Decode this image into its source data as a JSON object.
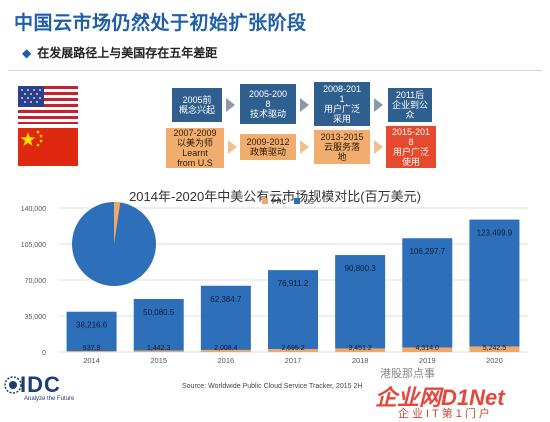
{
  "title": "中国云市场仍然处于初始扩张阶段",
  "subtitle": "在发展路径上与美国存在五年差距",
  "us_boxes": [
    "2005前\n概念兴起",
    "2005-200\n8\n技术驱动",
    "2008-201\n1\n用户广泛\n采用",
    "2011后\n企业到公\n众"
  ],
  "cn_boxes": [
    "2007-2009\n以美为师\nLearnt\nfrom U.S",
    "2009-2012\n政策驱动",
    "2013-2015\n云服务落\n地",
    "2015-201\n8\n用户广泛\n使用"
  ],
  "chart_data": {
    "type": "bar",
    "title": "2014年-2020年中美公有云市场规模对比(百万美元)",
    "categories": [
      "2014",
      "2015",
      "2016",
      "2017",
      "2018",
      "2019",
      "2020"
    ],
    "ylim": [
      0,
      140000
    ],
    "yticks": [
      "0",
      "35,000",
      "70,000",
      "105,000",
      "140,000"
    ],
    "ytick_values": [
      0,
      35000,
      70000,
      105000,
      140000
    ],
    "series": [
      {
        "name": "PRC",
        "values": [
          937.9,
          1442.3,
          2008.4,
          2695.2,
          3451.2,
          4314.0,
          5242.5
        ],
        "labels": [
          "937.9",
          "1,442.3",
          "2,008.4",
          "2,695.2",
          "3,451.2",
          "4,314.0",
          "5,242.5"
        ],
        "color": "#f0a868"
      },
      {
        "name": "US",
        "values": [
          38216.6,
          50080.5,
          62384.7,
          76911.2,
          90800.3,
          106297.7,
          123499.9
        ],
        "labels": [
          "38,216.6",
          "50,080.5",
          "62,384.7",
          "76,911.2",
          "90,800.3",
          "106,297.7",
          "123,499.9"
        ],
        "color": "#2e6fba"
      }
    ],
    "grid": true,
    "legend": "top"
  },
  "source": "Source: Worldwide Public Cloud Service Tracker, 2015 2H",
  "logo": {
    "name": "IDC",
    "tagline": "Analyze the Future"
  },
  "watermark": {
    "line1": "港股那点事",
    "line2": "企业网D1Net",
    "line3": "企业IT第1门户"
  }
}
